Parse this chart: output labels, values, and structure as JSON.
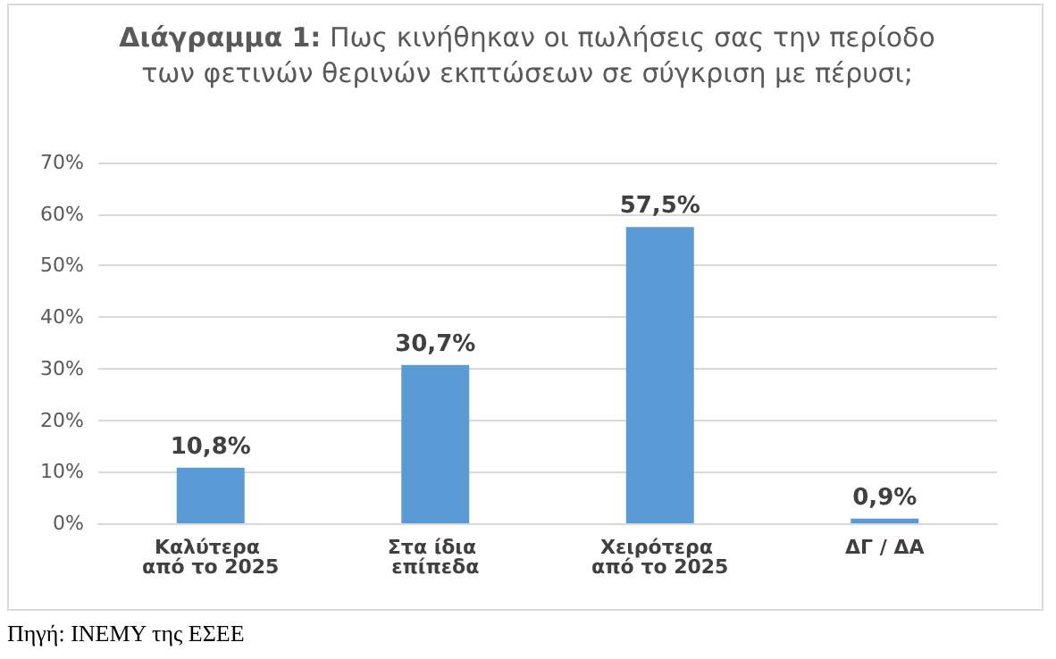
{
  "chart_data": {
    "type": "bar",
    "title": "Διάγραμμα 1: Πως κινήθηκαν οι πωλήσεις σας την περίοδο των φετινών θερινών εκπτώσεων σε σύγκριση με πέρυσι;",
    "categories": [
      "Καλύτερα από το 2025",
      "Στα ίδια επίπεδα",
      "Χειρότερα από το 2025",
      "ΔΓ / ΔΑ"
    ],
    "values": [
      10.8,
      30.7,
      57.5,
      0.9
    ],
    "value_labels": [
      "10,8%",
      "30,7%",
      "57,5%",
      "0,9%"
    ],
    "color": "#5b9bd5",
    "ylim": [
      0,
      70
    ],
    "yticks": [
      {
        "value": 0,
        "label": "0%"
      },
      {
        "value": 10,
        "label": "10%"
      },
      {
        "value": 20,
        "label": "20%"
      },
      {
        "value": 30,
        "label": "30%"
      },
      {
        "value": 40,
        "label": "40%"
      },
      {
        "value": 50,
        "label": "50%"
      },
      {
        "value": 60,
        "label": "60%"
      },
      {
        "value": 70,
        "label": "70%"
      }
    ],
    "grid": "y",
    "annotations": [
      "Πηγή: ΙΝΕΜΥ της ΕΣΕΕ"
    ]
  }
}
